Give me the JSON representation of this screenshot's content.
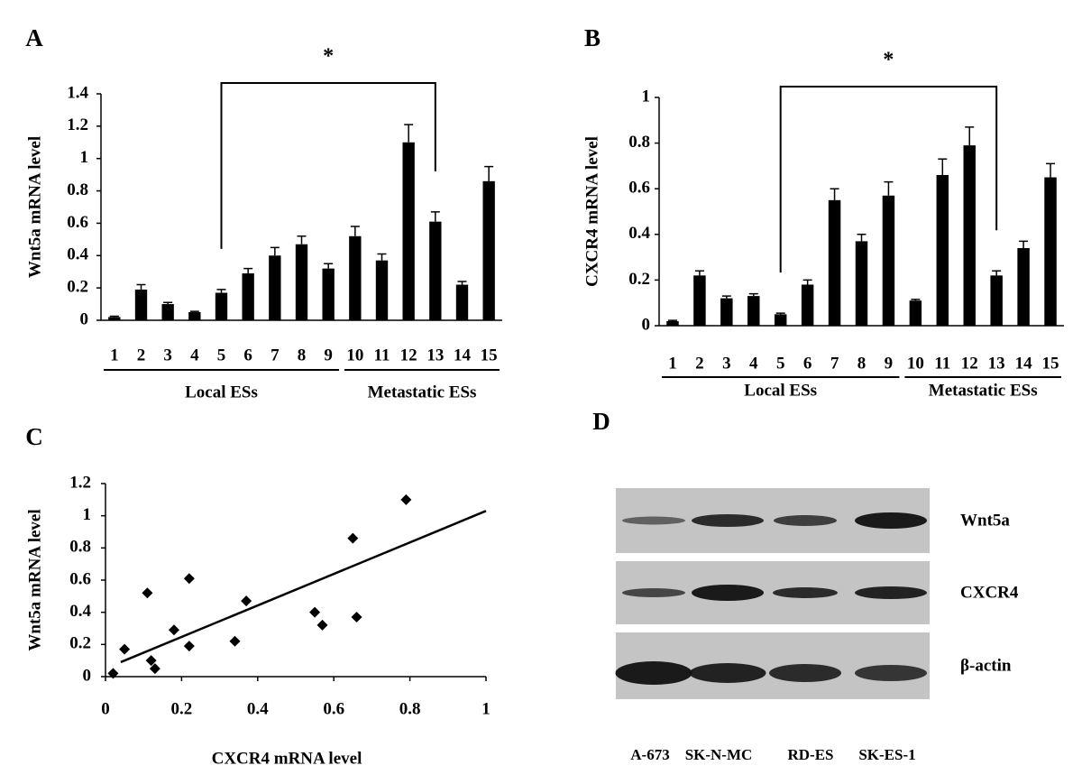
{
  "chart_data": [
    {
      "type": "bar",
      "panel": "A",
      "ylabel": "Wnt5a mRNA level",
      "categories": [
        "1",
        "2",
        "3",
        "4",
        "5",
        "6",
        "7",
        "8",
        "9",
        "10",
        "11",
        "12",
        "13",
        "14",
        "15"
      ],
      "values": [
        0.02,
        0.19,
        0.1,
        0.05,
        0.17,
        0.29,
        0.4,
        0.47,
        0.32,
        0.52,
        0.37,
        1.1,
        0.61,
        0.22,
        0.86
      ],
      "errors": [
        0.005,
        0.03,
        0.01,
        0.005,
        0.02,
        0.03,
        0.05,
        0.05,
        0.03,
        0.06,
        0.04,
        0.11,
        0.06,
        0.02,
        0.09
      ],
      "color": "#000000",
      "ylim": [
        0,
        1.4
      ],
      "yticks": [
        0,
        0.2,
        0.4,
        0.6,
        0.8,
        1,
        1.2,
        1.4
      ],
      "groups": [
        {
          "label": "Local ESs",
          "from": "1",
          "to": "9"
        },
        {
          "label": "Metastatic ESs",
          "from": "10",
          "to": "15"
        }
      ],
      "annotations": [
        {
          "text": "*",
          "from": "5",
          "to": "13"
        }
      ]
    },
    {
      "type": "bar",
      "panel": "B",
      "ylabel": "CXCR4 mRNA level",
      "categories": [
        "1",
        "2",
        "3",
        "4",
        "5",
        "6",
        "7",
        "8",
        "9",
        "10",
        "11",
        "12",
        "13",
        "14",
        "15"
      ],
      "values": [
        0.02,
        0.22,
        0.12,
        0.13,
        0.05,
        0.18,
        0.55,
        0.37,
        0.57,
        0.11,
        0.66,
        0.79,
        0.22,
        0.34,
        0.65
      ],
      "errors": [
        0.003,
        0.02,
        0.01,
        0.01,
        0.005,
        0.02,
        0.05,
        0.03,
        0.06,
        0.005,
        0.07,
        0.08,
        0.02,
        0.03,
        0.06
      ],
      "color": "#000000",
      "ylim": [
        0,
        1
      ],
      "yticks": [
        0,
        0.2,
        0.4,
        0.6,
        0.8,
        1
      ],
      "groups": [
        {
          "label": "Local ESs",
          "from": "1",
          "to": "9"
        },
        {
          "label": "Metastatic ESs",
          "from": "10",
          "to": "15"
        }
      ],
      "annotations": [
        {
          "text": "*",
          "from": "5",
          "to": "13"
        }
      ]
    },
    {
      "type": "scatter",
      "panel": "C",
      "xlabel": "CXCR4 mRNA level",
      "ylabel": "Wnt5a mRNA level",
      "x": [
        0.02,
        0.22,
        0.12,
        0.13,
        0.05,
        0.18,
        0.55,
        0.37,
        0.57,
        0.11,
        0.66,
        0.79,
        0.22,
        0.34,
        0.65
      ],
      "y": [
        0.02,
        0.19,
        0.1,
        0.05,
        0.17,
        0.29,
        0.4,
        0.47,
        0.32,
        0.52,
        0.37,
        1.1,
        0.61,
        0.22,
        0.86
      ],
      "trendline": {
        "x": [
          0.04,
          1
        ],
        "y": [
          0.09,
          1.03
        ]
      },
      "color": "#000000",
      "xlim": [
        0,
        1
      ],
      "xticks": [
        0,
        0.2,
        0.4,
        0.6,
        0.8,
        1
      ],
      "ylim": [
        0,
        1.2
      ],
      "yticks": [
        0,
        0.2,
        0.4,
        0.6,
        0.8,
        1,
        1.2
      ]
    }
  ],
  "blot": {
    "panel": "D",
    "rows": [
      "Wnt5a",
      "CXCR4",
      "β-actin"
    ],
    "lanes": [
      "A-673",
      "SK-N-MC",
      "RD-ES",
      "SK-ES-1"
    ]
  }
}
